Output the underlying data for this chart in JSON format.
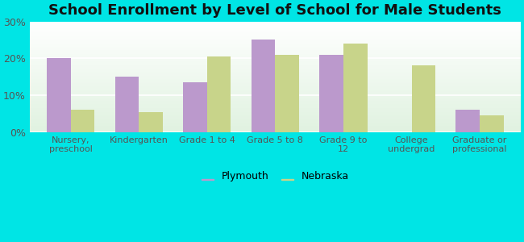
{
  "title": "School Enrollment by Level of School for Male Students",
  "categories": [
    "Nursery,\npreschool",
    "Kindergarten",
    "Grade 1 to 4",
    "Grade 5 to 8",
    "Grade 9 to\n12",
    "College\nundergrad",
    "Graduate or\nprofessional"
  ],
  "plymouth": [
    20.0,
    15.0,
    13.5,
    25.0,
    21.0,
    0.0,
    6.0
  ],
  "nebraska": [
    6.0,
    5.5,
    20.5,
    21.0,
    24.0,
    18.0,
    4.5
  ],
  "plymouth_color": "#bb99cc",
  "nebraska_color": "#c8d48a",
  "ylim": [
    0,
    30
  ],
  "yticks": [
    0,
    10,
    20,
    30
  ],
  "ytick_labels": [
    "0%",
    "10%",
    "20%",
    "30%"
  ],
  "bar_width": 0.35,
  "background_color": "#00e5e5",
  "plot_bg_top": "#f5faf5",
  "plot_bg_bottom": "#e8f5e8",
  "title_fontsize": 13,
  "legend_labels": [
    "Plymouth",
    "Nebraska"
  ],
  "tick_color": "#555555",
  "title_color": "#111111"
}
